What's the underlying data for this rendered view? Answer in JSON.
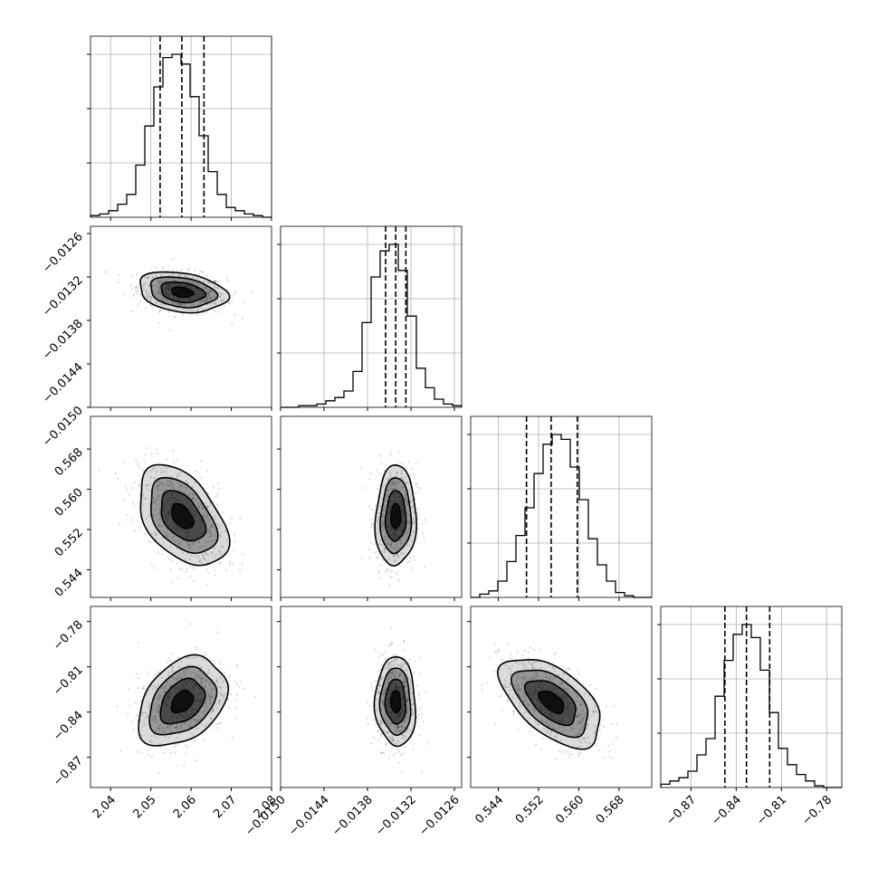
{
  "chart_data": {
    "type": "corner",
    "grid": true,
    "variables": [
      {
        "range": [
          2.035,
          2.08
        ],
        "ticks": [
          2.04,
          2.05,
          2.06,
          2.07,
          2.08
        ],
        "tick_labels": [
          "2.04",
          "2.05",
          "2.06",
          "2.07",
          "2.08"
        ],
        "quantiles": [
          2.0523,
          2.0577,
          2.0632
        ],
        "center": 2.0578,
        "sigma": 0.0055
      },
      {
        "range": [
          -0.015,
          -0.0125
        ],
        "ticks": [
          -0.015,
          -0.0144,
          -0.0138,
          -0.0132,
          -0.0126
        ],
        "tick_labels": [
          "−0.0150",
          "−0.0144",
          "−0.0138",
          "−0.0132",
          "−0.0126"
        ],
        "quantiles": [
          -0.01355,
          -0.01341,
          -0.01327
        ],
        "center": -0.01341,
        "sigma": 0.00014
      },
      {
        "range": [
          0.5385,
          0.5745
        ],
        "ticks": [
          0.544,
          0.552,
          0.56,
          0.568
        ],
        "tick_labels": [
          "0.544",
          "0.552",
          "0.560",
          "0.568"
        ],
        "quantiles": [
          0.5496,
          0.5545,
          0.5597
        ],
        "center": 0.5546,
        "sigma": 0.005
      },
      {
        "range": [
          -0.89,
          -0.77
        ],
        "ticks": [
          -0.87,
          -0.84,
          -0.81,
          -0.78
        ],
        "tick_labels": [
          "−0.87",
          "−0.84",
          "−0.81",
          "−0.78"
        ],
        "quantiles": [
          -0.8475,
          -0.8332,
          -0.8178
        ],
        "center": -0.8332,
        "sigma": 0.0148
      }
    ],
    "correlations": [
      [
        1,
        -0.25,
        -0.45,
        0.35
      ],
      [
        -0.25,
        1,
        0.05,
        -0.05
      ],
      [
        -0.45,
        0.05,
        1,
        -0.55
      ],
      [
        0.35,
        -0.05,
        -0.55,
        1
      ]
    ],
    "histograms": [
      [
        0.01,
        0.02,
        0.04,
        0.08,
        0.14,
        0.32,
        0.56,
        0.8,
        0.98,
        1.0,
        0.94,
        0.74,
        0.5,
        0.28,
        0.14,
        0.06,
        0.04,
        0.02,
        0.01,
        0.0
      ],
      [
        0.0,
        0.0,
        0.01,
        0.01,
        0.02,
        0.04,
        0.06,
        0.1,
        0.22,
        0.52,
        0.8,
        0.96,
        1.0,
        0.84,
        0.56,
        0.24,
        0.12,
        0.05,
        0.02,
        0.01
      ],
      [
        0.0,
        0.02,
        0.04,
        0.1,
        0.22,
        0.38,
        0.55,
        0.76,
        0.94,
        1.0,
        0.97,
        0.8,
        0.6,
        0.36,
        0.2,
        0.1,
        0.03,
        0.01,
        0.0,
        0.0
      ],
      [
        0.02,
        0.04,
        0.06,
        0.1,
        0.2,
        0.3,
        0.56,
        0.78,
        0.94,
        1.0,
        0.92,
        0.72,
        0.46,
        0.24,
        0.14,
        0.08,
        0.04,
        0.01,
        0.0,
        0.0
      ]
    ]
  }
}
